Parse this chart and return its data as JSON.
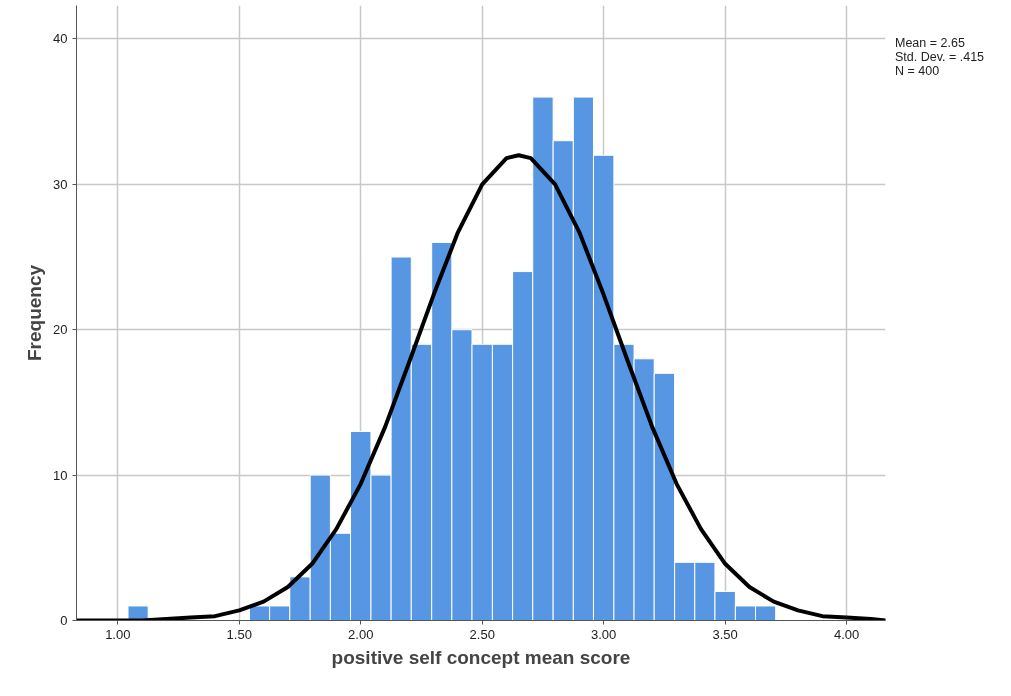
{
  "chart_data": {
    "type": "histogram",
    "xlabel": "positive self concept mean score",
    "ylabel": "Frequency",
    "bins": [
      1.042,
      1.125,
      1.208,
      1.292,
      1.375,
      1.458,
      1.542,
      1.625,
      1.708,
      1.792,
      1.875,
      1.958,
      2.042,
      2.125,
      2.208,
      2.292,
      2.375,
      2.458,
      2.542,
      2.625,
      2.708,
      2.792,
      2.875,
      2.958,
      3.042,
      3.125,
      3.208,
      3.292,
      3.375,
      3.458,
      3.542,
      3.625,
      3.708
    ],
    "values": [
      1,
      0,
      0,
      0,
      0,
      0,
      1,
      1,
      3,
      10,
      6,
      13,
      10,
      25,
      19,
      26,
      20,
      19,
      19,
      24,
      36,
      33,
      36,
      32,
      19,
      18,
      17,
      4,
      4,
      2,
      1,
      1
    ],
    "color": "#5796e3",
    "series": [
      {
        "type": "line",
        "color": "#000000",
        "x": [
          0.83,
          1.0,
          1.1,
          1.2,
          1.3,
          1.4,
          1.5,
          1.6,
          1.7,
          1.8,
          1.9,
          2.0,
          2.1,
          2.2,
          2.3,
          2.4,
          2.5,
          2.6,
          2.65,
          2.7,
          2.8,
          2.9,
          3.0,
          3.1,
          3.2,
          3.3,
          3.4,
          3.5,
          3.6,
          3.7,
          3.8,
          3.9,
          4.0,
          4.1,
          4.16
        ],
        "values": [
          0.0,
          0.0,
          0.0,
          0.1,
          0.2,
          0.3,
          0.7,
          1.3,
          2.3,
          3.9,
          6.3,
          9.4,
          13.3,
          17.8,
          22.4,
          26.7,
          30.0,
          31.8,
          32.0,
          31.8,
          30.0,
          26.7,
          22.4,
          17.8,
          13.3,
          9.4,
          6.3,
          3.9,
          2.3,
          1.3,
          0.7,
          0.3,
          0.2,
          0.1,
          0.0
        ]
      }
    ],
    "xlim": [
      0.83,
      4.16
    ],
    "ylim": [
      0,
      42.3
    ],
    "xticks": [
      {
        "value": 1,
        "label": "1.00"
      },
      {
        "value": 1.5,
        "label": "1.50"
      },
      {
        "value": 2,
        "label": "2.00"
      },
      {
        "value": 2.5,
        "label": "2.50"
      },
      {
        "value": 3,
        "label": "3.00"
      },
      {
        "value": 3.5,
        "label": "3.50"
      },
      {
        "value": 4,
        "label": "4.00"
      }
    ],
    "yticks": [
      0,
      10,
      20,
      30,
      40
    ],
    "grid": true,
    "annotations": [
      "Mean = 2.65",
      "Std. Dev. = .415",
      "N = 400"
    ]
  }
}
